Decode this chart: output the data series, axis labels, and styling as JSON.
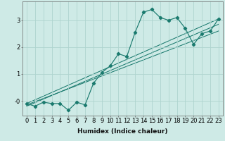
{
  "xlabel": "Humidex (Indice chaleur)",
  "bg_color": "#ceeae6",
  "grid_color": "#aed4cf",
  "line_color": "#1a7a6e",
  "x_main": [
    0,
    1,
    2,
    3,
    4,
    5,
    6,
    7,
    8,
    9,
    10,
    11,
    12,
    13,
    14,
    15,
    16,
    17,
    18,
    19,
    20,
    21,
    22,
    23
  ],
  "y_main": [
    -0.1,
    -0.2,
    -0.05,
    -0.1,
    -0.1,
    -0.35,
    -0.05,
    -0.15,
    0.65,
    1.05,
    1.3,
    1.75,
    1.65,
    2.55,
    3.3,
    3.4,
    3.1,
    3.0,
    3.1,
    2.7,
    2.1,
    2.5,
    2.6,
    3.05
  ],
  "xlim": [
    -0.5,
    23.5
  ],
  "ylim": [
    -0.55,
    3.7
  ],
  "yticks": [
    0,
    1,
    2,
    3
  ],
  "ytick_labels": [
    "-0",
    "1",
    "2",
    "3"
  ],
  "xticks": [
    0,
    1,
    2,
    3,
    4,
    5,
    6,
    7,
    8,
    9,
    10,
    11,
    12,
    13,
    14,
    15,
    16,
    17,
    18,
    19,
    20,
    21,
    22,
    23
  ],
  "line1_x": [
    0,
    23
  ],
  "line1_y": [
    -0.1,
    3.05
  ],
  "line2_x": [
    0,
    23
  ],
  "line2_y": [
    -0.15,
    2.6
  ],
  "line3_x": [
    0,
    23
  ],
  "line3_y": [
    -0.2,
    2.85
  ]
}
